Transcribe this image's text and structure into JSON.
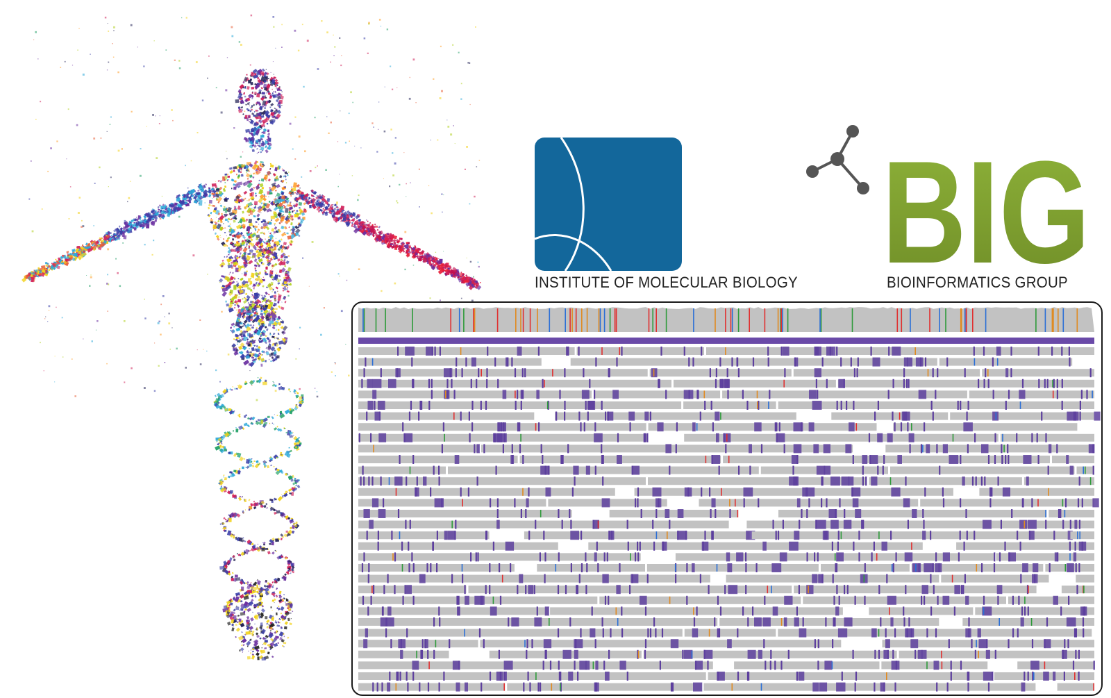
{
  "logos": {
    "imb": {
      "caption": "INSTITUTE OF MOLECULAR BIOLOGY",
      "box_color": "#13679b",
      "icon": "imb-arc-logo-icon"
    },
    "big": {
      "wordmark": "BIG",
      "caption": "BIOINFORMATICS GROUP",
      "wordmark_color": "#7e9f2e",
      "molecule_color": "#555555",
      "icon": "molecule-icon"
    }
  },
  "illustration": {
    "icon": "human-dna-particle-illustration"
  },
  "alignment_view": {
    "icon": "genome-read-alignment-viewer",
    "read_color": "#c2c2c2",
    "insertion_color": "#5d3f9e",
    "reference_bar_color": "#6a4aa8",
    "mismatch_colors": [
      "#e03030",
      "#2b6fd6",
      "#2e9a3a",
      "#e08a20"
    ]
  }
}
